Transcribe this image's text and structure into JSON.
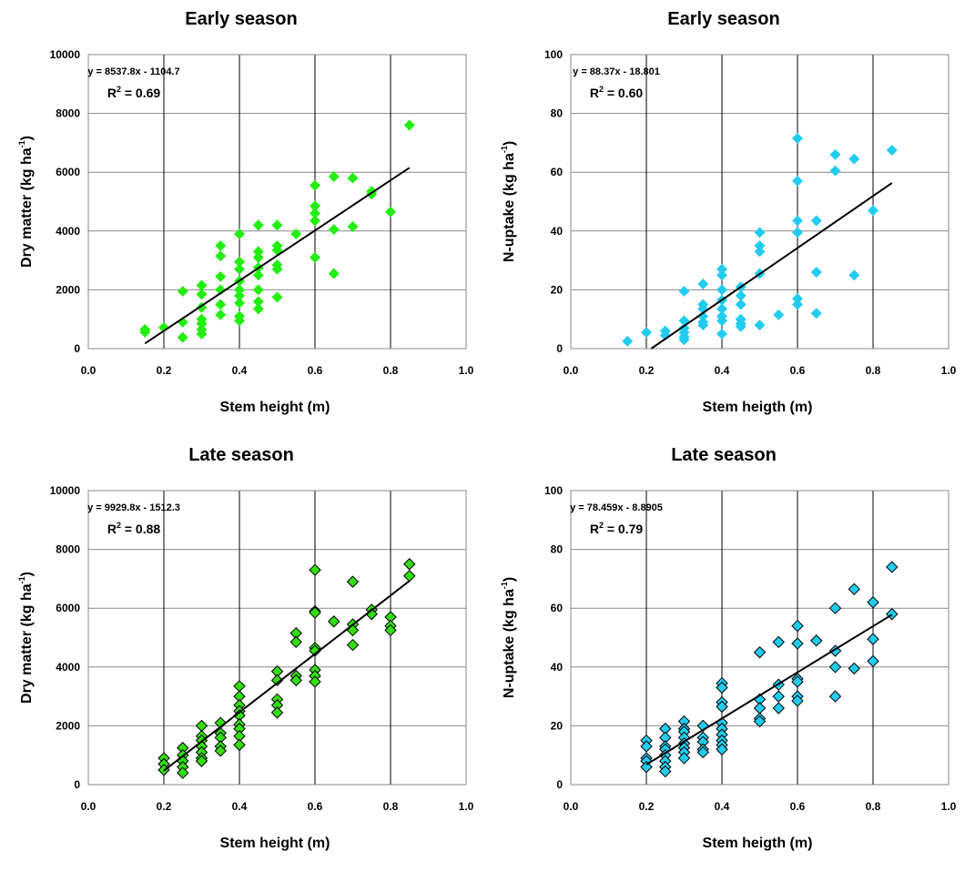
{
  "chart_data": [
    {
      "type": "scatter",
      "title": "Early season",
      "xlabel": "Stem height (m)",
      "ylabel": "Dry matter (kg ha",
      "ylabel_sup": "-1",
      "ylabel_end": ")",
      "xlim": [
        0,
        1.0
      ],
      "ylim": [
        0,
        10000
      ],
      "xticks": [
        "0.0",
        "0.2",
        "0.4",
        "0.6",
        "0.8",
        "1.0"
      ],
      "yticks": [
        "0",
        "2000",
        "4000",
        "6000",
        "8000",
        "10000"
      ],
      "equation": "y = 8537.8x - 1104.7",
      "r2_label": "R",
      "r2_value": " = 0.69",
      "trend": {
        "slope": 8537.8,
        "intercept": -1104.7,
        "x_range": [
          0.15,
          0.85
        ]
      },
      "marker_color": "#22ee11",
      "marker_outline": false,
      "points": [
        [
          0.15,
          650
        ],
        [
          0.15,
          560
        ],
        [
          0.2,
          720
        ],
        [
          0.25,
          1950
        ],
        [
          0.25,
          900
        ],
        [
          0.25,
          380
        ],
        [
          0.3,
          2150
        ],
        [
          0.3,
          1850
        ],
        [
          0.3,
          1400
        ],
        [
          0.3,
          1000
        ],
        [
          0.3,
          850
        ],
        [
          0.3,
          650
        ],
        [
          0.3,
          500
        ],
        [
          0.35,
          3500
        ],
        [
          0.35,
          3150
        ],
        [
          0.35,
          2450
        ],
        [
          0.35,
          2000
        ],
        [
          0.35,
          1500
        ],
        [
          0.35,
          1150
        ],
        [
          0.4,
          3900
        ],
        [
          0.4,
          2950
        ],
        [
          0.4,
          2700
        ],
        [
          0.4,
          2300
        ],
        [
          0.4,
          2000
        ],
        [
          0.4,
          1800
        ],
        [
          0.4,
          1550
        ],
        [
          0.4,
          1100
        ],
        [
          0.4,
          950
        ],
        [
          0.45,
          4200
        ],
        [
          0.45,
          3300
        ],
        [
          0.45,
          3100
        ],
        [
          0.45,
          2750
        ],
        [
          0.45,
          2500
        ],
        [
          0.45,
          2000
        ],
        [
          0.45,
          1600
        ],
        [
          0.45,
          1350
        ],
        [
          0.5,
          4200
        ],
        [
          0.5,
          3500
        ],
        [
          0.5,
          3350
        ],
        [
          0.5,
          2850
        ],
        [
          0.5,
          2700
        ],
        [
          0.5,
          1750
        ],
        [
          0.55,
          3900
        ],
        [
          0.6,
          5550
        ],
        [
          0.6,
          4850
        ],
        [
          0.6,
          4600
        ],
        [
          0.6,
          4350
        ],
        [
          0.6,
          3100
        ],
        [
          0.65,
          5850
        ],
        [
          0.65,
          4050
        ],
        [
          0.65,
          2550
        ],
        [
          0.7,
          5800
        ],
        [
          0.7,
          4150
        ],
        [
          0.75,
          5350
        ],
        [
          0.75,
          5250
        ],
        [
          0.8,
          4650
        ],
        [
          0.85,
          7600
        ]
      ]
    },
    {
      "type": "scatter",
      "title": "Early season",
      "xlabel": "Stem heigth (m)",
      "ylabel": "N-uptake (kg ha",
      "ylabel_sup": "-1",
      "ylabel_end": ")",
      "xlim": [
        0,
        1.0
      ],
      "ylim": [
        0,
        100
      ],
      "xticks": [
        "0.0",
        "0.2",
        "0.4",
        "0.6",
        "0.8",
        "1.0"
      ],
      "yticks": [
        "0",
        "20",
        "40",
        "60",
        "80",
        "100"
      ],
      "equation": "y = 88.37x - 18.801",
      "r2_label": "R",
      "r2_value": " = 0.60",
      "trend": {
        "slope": 88.37,
        "intercept": -18.801,
        "x_range": [
          0.213,
          0.85
        ]
      },
      "marker_color": "#22ccf0",
      "marker_outline": false,
      "points": [
        [
          0.15,
          2.5
        ],
        [
          0.2,
          5.5
        ],
        [
          0.25,
          6
        ],
        [
          0.25,
          4.5
        ],
        [
          0.3,
          19.5
        ],
        [
          0.3,
          9.5
        ],
        [
          0.3,
          7
        ],
        [
          0.3,
          5.5
        ],
        [
          0.3,
          4
        ],
        [
          0.3,
          3
        ],
        [
          0.35,
          22
        ],
        [
          0.35,
          15
        ],
        [
          0.35,
          13.5
        ],
        [
          0.35,
          11
        ],
        [
          0.35,
          9
        ],
        [
          0.35,
          8
        ],
        [
          0.4,
          27
        ],
        [
          0.4,
          25
        ],
        [
          0.4,
          20
        ],
        [
          0.4,
          16.5
        ],
        [
          0.4,
          13.5
        ],
        [
          0.4,
          11
        ],
        [
          0.4,
          9.5
        ],
        [
          0.4,
          5
        ],
        [
          0.45,
          21
        ],
        [
          0.45,
          18
        ],
        [
          0.45,
          15
        ],
        [
          0.45,
          10
        ],
        [
          0.45,
          8.5
        ],
        [
          0.45,
          7.5
        ],
        [
          0.5,
          39.5
        ],
        [
          0.5,
          35
        ],
        [
          0.5,
          33
        ],
        [
          0.5,
          25.5
        ],
        [
          0.5,
          8
        ],
        [
          0.55,
          11.5
        ],
        [
          0.6,
          71.5
        ],
        [
          0.6,
          57
        ],
        [
          0.6,
          43.5
        ],
        [
          0.6,
          39.5
        ],
        [
          0.6,
          17
        ],
        [
          0.6,
          15
        ],
        [
          0.65,
          43.5
        ],
        [
          0.65,
          26
        ],
        [
          0.65,
          12
        ],
        [
          0.7,
          66
        ],
        [
          0.7,
          60.5
        ],
        [
          0.75,
          64.5
        ],
        [
          0.75,
          25
        ],
        [
          0.8,
          47
        ],
        [
          0.85,
          67.5
        ]
      ]
    },
    {
      "type": "scatter",
      "title": "Late season",
      "xlabel": "Stem height (m)",
      "ylabel": "Dry matter (kg ha",
      "ylabel_sup": "-1",
      "ylabel_end": ")",
      "xlim": [
        0,
        1.0
      ],
      "ylim": [
        0,
        10000
      ],
      "xticks": [
        "0.0",
        "0.2",
        "0.4",
        "0.6",
        "0.8",
        "1.0"
      ],
      "yticks": [
        "0",
        "2000",
        "4000",
        "6000",
        "8000",
        "10000"
      ],
      "equation": "y = 9929.8x - 1512.3",
      "r2_label": "R",
      "r2_value": " = 0.88",
      "trend": {
        "slope": 9929.8,
        "intercept": -1512.3,
        "x_range": [
          0.2,
          0.85
        ]
      },
      "marker_color": "#33dd11",
      "marker_outline": true,
      "points": [
        [
          0.2,
          900
        ],
        [
          0.2,
          700
        ],
        [
          0.2,
          500
        ],
        [
          0.25,
          1250
        ],
        [
          0.25,
          1000
        ],
        [
          0.25,
          800
        ],
        [
          0.25,
          600
        ],
        [
          0.25,
          400
        ],
        [
          0.3,
          2000
        ],
        [
          0.3,
          1650
        ],
        [
          0.3,
          1500
        ],
        [
          0.3,
          1300
        ],
        [
          0.3,
          1100
        ],
        [
          0.3,
          900
        ],
        [
          0.3,
          800
        ],
        [
          0.35,
          2100
        ],
        [
          0.35,
          1750
        ],
        [
          0.35,
          1600
        ],
        [
          0.35,
          1300
        ],
        [
          0.35,
          1150
        ],
        [
          0.4,
          3350
        ],
        [
          0.4,
          3000
        ],
        [
          0.4,
          2700
        ],
        [
          0.4,
          2500
        ],
        [
          0.4,
          2350
        ],
        [
          0.4,
          2050
        ],
        [
          0.4,
          1900
        ],
        [
          0.4,
          1650
        ],
        [
          0.4,
          1350
        ],
        [
          0.5,
          3850
        ],
        [
          0.5,
          3550
        ],
        [
          0.5,
          2900
        ],
        [
          0.5,
          2700
        ],
        [
          0.5,
          2450
        ],
        [
          0.55,
          5150
        ],
        [
          0.55,
          4850
        ],
        [
          0.55,
          3700
        ],
        [
          0.55,
          3550
        ],
        [
          0.6,
          7300
        ],
        [
          0.6,
          5900
        ],
        [
          0.6,
          5850
        ],
        [
          0.6,
          4650
        ],
        [
          0.6,
          4550
        ],
        [
          0.6,
          3900
        ],
        [
          0.6,
          3700
        ],
        [
          0.6,
          3500
        ],
        [
          0.65,
          5550
        ],
        [
          0.7,
          6900
        ],
        [
          0.7,
          5450
        ],
        [
          0.7,
          5250
        ],
        [
          0.7,
          4750
        ],
        [
          0.75,
          5950
        ],
        [
          0.75,
          5800
        ],
        [
          0.8,
          5700
        ],
        [
          0.8,
          5400
        ],
        [
          0.8,
          5250
        ],
        [
          0.85,
          7500
        ],
        [
          0.85,
          7100
        ]
      ]
    },
    {
      "type": "scatter",
      "title": "Late season",
      "xlabel": "Stem heigth (m)",
      "ylabel": "N-uptake (kg ha",
      "ylabel_sup": "-1",
      "ylabel_end": ")",
      "xlim": [
        0,
        1.0
      ],
      "ylim": [
        0,
        100
      ],
      "xticks": [
        "0.0",
        "0.2",
        "0.4",
        "0.6",
        "0.8",
        "1.0"
      ],
      "yticks": [
        "0",
        "20",
        "40",
        "60",
        "80",
        "100"
      ],
      "equation": "y = 78.459x - 8.8905",
      "r2_label": "R",
      "r2_value": " = 0.79",
      "trend": {
        "slope": 78.459,
        "intercept": -8.8905,
        "x_range": [
          0.2,
          0.85
        ]
      },
      "marker_color": "#22ccf0",
      "marker_outline": true,
      "points": [
        [
          0.2,
          15
        ],
        [
          0.2,
          13
        ],
        [
          0.2,
          9
        ],
        [
          0.2,
          8
        ],
        [
          0.2,
          6
        ],
        [
          0.25,
          19
        ],
        [
          0.25,
          16
        ],
        [
          0.25,
          13
        ],
        [
          0.25,
          12
        ],
        [
          0.25,
          10
        ],
        [
          0.25,
          8
        ],
        [
          0.25,
          6
        ],
        [
          0.25,
          4.5
        ],
        [
          0.3,
          21.5
        ],
        [
          0.3,
          19
        ],
        [
          0.3,
          18
        ],
        [
          0.3,
          16
        ],
        [
          0.3,
          14
        ],
        [
          0.3,
          12.5
        ],
        [
          0.3,
          11
        ],
        [
          0.3,
          9
        ],
        [
          0.35,
          20
        ],
        [
          0.35,
          16
        ],
        [
          0.35,
          14.5
        ],
        [
          0.35,
          12
        ],
        [
          0.35,
          11
        ],
        [
          0.4,
          34.5
        ],
        [
          0.4,
          33
        ],
        [
          0.4,
          28
        ],
        [
          0.4,
          26.5
        ],
        [
          0.4,
          21
        ],
        [
          0.4,
          19
        ],
        [
          0.4,
          17
        ],
        [
          0.4,
          15
        ],
        [
          0.4,
          13.5
        ],
        [
          0.4,
          12
        ],
        [
          0.5,
          45
        ],
        [
          0.5,
          29
        ],
        [
          0.5,
          26
        ],
        [
          0.5,
          22.5
        ],
        [
          0.5,
          21.5
        ],
        [
          0.55,
          48.5
        ],
        [
          0.55,
          34
        ],
        [
          0.55,
          30
        ],
        [
          0.55,
          26
        ],
        [
          0.6,
          54
        ],
        [
          0.6,
          48
        ],
        [
          0.6,
          36
        ],
        [
          0.6,
          35
        ],
        [
          0.6,
          30
        ],
        [
          0.6,
          28.5
        ],
        [
          0.65,
          49
        ],
        [
          0.7,
          60
        ],
        [
          0.7,
          45.5
        ],
        [
          0.7,
          40
        ],
        [
          0.7,
          30
        ],
        [
          0.75,
          66.5
        ],
        [
          0.75,
          39.5
        ],
        [
          0.8,
          62
        ],
        [
          0.8,
          49.5
        ],
        [
          0.8,
          42
        ],
        [
          0.85,
          74
        ],
        [
          0.85,
          58
        ]
      ]
    }
  ]
}
